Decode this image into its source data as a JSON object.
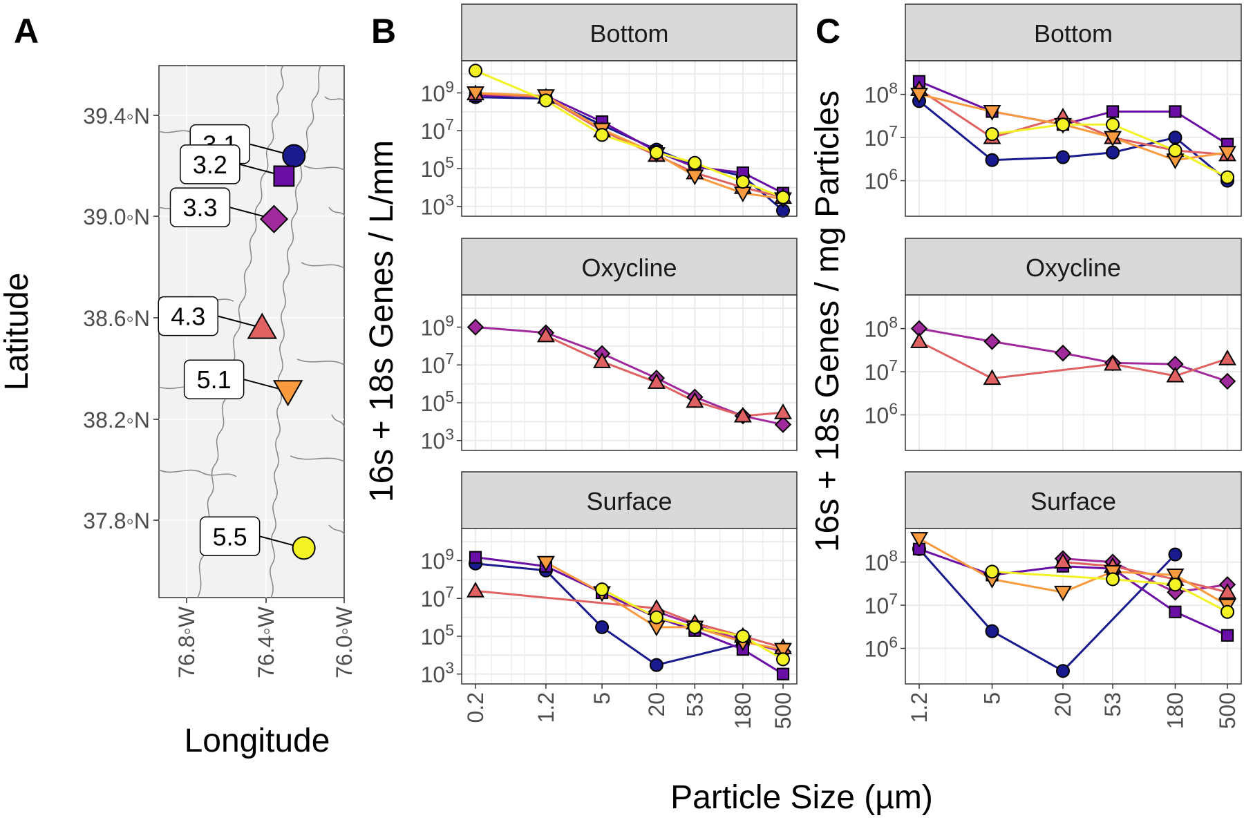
{
  "panel_labels": [
    "A",
    "B",
    "C"
  ],
  "map": {
    "xlabel": "Longitude",
    "ylabel": "Latitude",
    "x_ticks": [
      "76.8◦W",
      "76.4◦W",
      "76.0◦W"
    ],
    "y_ticks": [
      "39.4◦N",
      "39.0◦N",
      "38.6◦N",
      "38.2◦N",
      "37.8◦N"
    ],
    "stations": [
      {
        "label": "3.1",
        "lon": -76.26,
        "lat": 39.24,
        "shape": "circle",
        "color": "#1a1a8f"
      },
      {
        "label": "3.2",
        "lon": -76.31,
        "lat": 39.16,
        "shape": "square",
        "color": "#6a0fa6"
      },
      {
        "label": "3.3",
        "lon": -76.36,
        "lat": 38.99,
        "shape": "diamond",
        "color": "#a02a9c"
      },
      {
        "label": "4.3",
        "lon": -76.42,
        "lat": 38.56,
        "shape": "triangle",
        "color": "#e06161"
      },
      {
        "label": "5.1",
        "lon": -76.29,
        "lat": 38.31,
        "shape": "triangle-down",
        "color": "#f99a3e"
      },
      {
        "label": "5.5",
        "lon": -76.21,
        "lat": 37.69,
        "shape": "circle",
        "color": "#f2f224"
      }
    ]
  },
  "chart_data": [
    {
      "type": "line",
      "panel": "B",
      "xlabel": "Particle Size (µm)",
      "ylabel": "16s + 18s Genes / L/mm",
      "x_scale": "log",
      "y_scale": "log",
      "x_ticks": [
        "0.2",
        "1.2",
        "5",
        "20",
        "53",
        "180",
        "500"
      ],
      "y_ticks": [
        "10^3",
        "10^5",
        "10^7",
        "10^9"
      ],
      "facets": [
        {
          "strip": "Bottom",
          "series": [
            {
              "station": "3.1",
              "x": [
                0.2,
                1.2,
                5,
                20,
                53,
                180,
                500
              ],
              "y": [
                600000000,
                500000000,
                20000000,
                1000000,
                150000,
                40000,
                600
              ]
            },
            {
              "station": "3.2",
              "x": [
                0.2,
                1.2,
                5,
                20,
                53,
                180,
                500
              ],
              "y": [
                700000000,
                700000000,
                30000000,
                800000,
                120000,
                60000,
                5000
              ]
            },
            {
              "station": "4.3",
              "x": [
                0.2,
                1.2,
                5,
                20,
                53,
                180,
                500
              ],
              "y": [
                900000000,
                600000000,
                10000000,
                500000,
                60000,
                10000,
                3000
              ]
            },
            {
              "station": "5.1",
              "x": [
                0.2,
                1.2,
                5,
                20,
                53,
                180,
                500
              ],
              "y": [
                1000000000,
                700000000,
                12000000,
                600000,
                40000,
                5000,
                2500
              ]
            },
            {
              "station": "5.5",
              "x": [
                0.2,
                1.2,
                5,
                20,
                53,
                180,
                500
              ],
              "y": [
                15000000000,
                400000000,
                6000000,
                700000,
                200000,
                20000,
                3000
              ]
            }
          ]
        },
        {
          "strip": "Oxycline",
          "series": [
            {
              "station": "3.3",
              "x": [
                0.2,
                1.2,
                5,
                20,
                53,
                180,
                500
              ],
              "y": [
                1000000000,
                500000000,
                40000000,
                2000000,
                200000,
                20000,
                7000
              ]
            },
            {
              "station": "4.3",
              "x": [
                1.2,
                5,
                20,
                53,
                180,
                500
              ],
              "y": [
                350000000,
                15000000,
                1200000,
                120000,
                20000,
                30000
              ]
            }
          ]
        },
        {
          "strip": "Surface",
          "series": [
            {
              "station": "3.1",
              "x": [
                0.2,
                1.2,
                5,
                20,
                180
              ],
              "y": [
                700000000,
                300000000,
                300000,
                3000,
                40000
              ]
            },
            {
              "station": "3.2",
              "x": [
                0.2,
                1.2,
                5,
                20,
                53,
                180,
                500
              ],
              "y": [
                1500000000,
                500000000,
                20000000,
                1000000,
                200000,
                20000,
                1000
              ]
            },
            {
              "station": "3.3",
              "x": [
                20,
                53,
                180,
                500
              ],
              "y": [
                2000000,
                400000,
                60000,
                15000
              ]
            },
            {
              "station": "4.3",
              "x": [
                0.2,
                20,
                53,
                180,
                500
              ],
              "y": [
                25000000,
                3000000,
                500000,
                100000,
                25000
              ]
            },
            {
              "station": "5.1",
              "x": [
                1.2,
                5,
                20,
                53,
                180,
                500
              ],
              "y": [
                800000000,
                20000000,
                300000,
                300000,
                50000,
                20000
              ]
            },
            {
              "station": "5.5",
              "x": [
                5,
                20,
                53,
                180,
                500
              ],
              "y": [
                30000000,
                1000000,
                300000,
                100000,
                6000
              ]
            }
          ]
        }
      ]
    },
    {
      "type": "line",
      "panel": "C",
      "xlabel": "Particle Size (µm)",
      "ylabel": "16s + 18s Genes / mg Particles",
      "x_scale": "log",
      "y_scale": "log",
      "x_ticks": [
        "1.2",
        "5",
        "20",
        "53",
        "180",
        "500"
      ],
      "y_ticks": [
        "10^6",
        "10^7",
        "10^8"
      ],
      "facets": [
        {
          "strip": "Bottom",
          "series": [
            {
              "station": "3.1",
              "x": [
                1.2,
                5,
                20,
                53,
                180,
                500
              ],
              "y": [
                70000000,
                3000000,
                3500000,
                4500000,
                10000000,
                1000000
              ]
            },
            {
              "station": "3.2",
              "x": [
                1.2,
                5,
                20,
                53,
                180,
                500
              ],
              "y": [
                200000000,
                40000000,
                20000000,
                40000000,
                40000000,
                7000000
              ]
            },
            {
              "station": "4.3",
              "x": [
                1.2,
                5,
                20,
                53,
                180,
                500
              ],
              "y": [
                130000000,
                10000000,
                30000000,
                10000000,
                5000000,
                4000000
              ]
            },
            {
              "station": "5.1",
              "x": [
                1.2,
                5,
                20,
                53,
                180,
                500
              ],
              "y": [
                100000000,
                40000000,
                20000000,
                10000000,
                3000000,
                4500000
              ]
            },
            {
              "station": "5.5",
              "x": [
                5,
                20,
                53,
                180,
                500
              ],
              "y": [
                12000000,
                20000000,
                20000000,
                5000000,
                1200000
              ]
            }
          ]
        },
        {
          "strip": "Oxycline",
          "series": [
            {
              "station": "3.3",
              "x": [
                1.2,
                5,
                20,
                53,
                180,
                500
              ],
              "y": [
                100000000,
                50000000,
                27000000,
                16000000,
                15000000,
                6000000
              ]
            },
            {
              "station": "4.3",
              "x": [
                1.2,
                5,
                53,
                180,
                500
              ],
              "y": [
                50000000,
                7000000,
                15000000,
                8000000,
                20000000
              ]
            }
          ]
        },
        {
          "strip": "Surface",
          "series": [
            {
              "station": "3.1",
              "x": [
                1.2,
                5,
                20,
                180
              ],
              "y": [
                200000000,
                2500000,
                300000,
                150000000
              ]
            },
            {
              "station": "3.2",
              "x": [
                1.2,
                5,
                20,
                53,
                180,
                500
              ],
              "y": [
                200000000,
                50000000,
                80000000,
                70000000,
                7000000,
                2000000
              ]
            },
            {
              "station": "3.3",
              "x": [
                20,
                53,
                180,
                500
              ],
              "y": [
                120000000,
                100000000,
                20000000,
                30000000
              ]
            },
            {
              "station": "4.3",
              "x": [
                20,
                53,
                180,
                500
              ],
              "y": [
                100000000,
                80000000,
                40000000,
                20000000
              ]
            },
            {
              "station": "5.1",
              "x": [
                1.2,
                5,
                20,
                53,
                180,
                500
              ],
              "y": [
                350000000,
                40000000,
                20000000,
                60000000,
                50000000,
                10000000
              ]
            },
            {
              "station": "5.5",
              "x": [
                5,
                53,
                180,
                500
              ],
              "y": [
                60000000,
                40000000,
                30000000,
                7000000
              ]
            }
          ]
        }
      ]
    }
  ]
}
